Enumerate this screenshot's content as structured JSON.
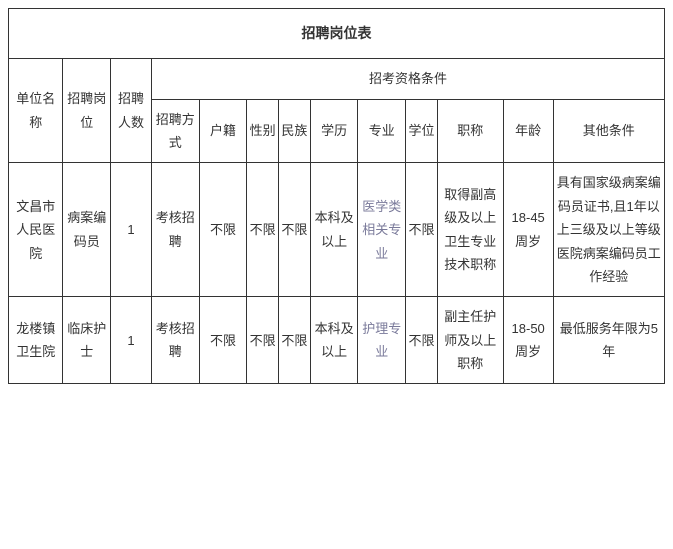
{
  "title": "招聘岗位表",
  "headers": {
    "unit": "单位名称",
    "position": "招聘岗位",
    "number": "招聘人数",
    "qualification_group": "招考资格条件",
    "method": "招聘方式",
    "hukou": "户籍",
    "gender": "性别",
    "ethnic": "民族",
    "education": "学历",
    "major": "专业",
    "degree": "学位",
    "title": "职称",
    "age": "年龄",
    "other": "其他条件"
  },
  "rows": [
    {
      "unit": "文昌市人民医院",
      "position": "病案编码员",
      "number": "1",
      "method": "考核招聘",
      "hukou": "不限",
      "gender": "不限",
      "ethnic": "不限",
      "education": "本科及以上",
      "major": "医学类相关专业",
      "degree": "不限",
      "title": "取得副高级及以上卫生专业技术职称",
      "age": "18-45周岁",
      "other": "具有国家级病案编码员证书,且1年以上三级及以上等级医院病案编码员工作经验"
    },
    {
      "unit": "龙楼镇卫生院",
      "position": "临床护士",
      "number": "1",
      "method": "考核招聘",
      "hukou": "不限",
      "gender": "不限",
      "ethnic": "不限",
      "education": "本科及以上",
      "major": "护理专业",
      "degree": "不限",
      "title": "副主任护师及以上职称",
      "age": "18-50周岁",
      "other": "最低服务年限为5年"
    }
  ],
  "colors": {
    "border": "#333333",
    "text": "#333333",
    "link": "#7a7a9a",
    "background": "#ffffff"
  }
}
